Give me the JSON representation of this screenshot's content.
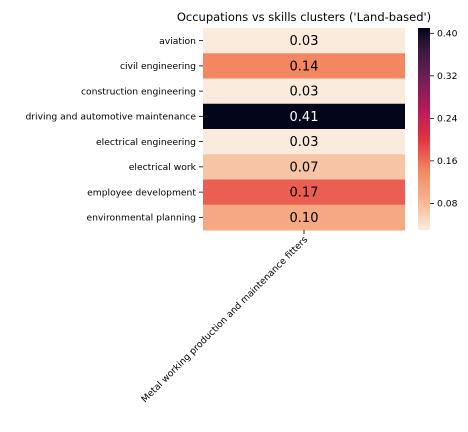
{
  "chart_data": {
    "type": "heatmap",
    "title": "Occupations vs skills clusters ('Land-based')",
    "columns": [
      "Metal working production and maintenance fitters"
    ],
    "rows": [
      "aviation",
      "civil engineering",
      "construction engineering",
      "driving and automotive maintenance",
      "electrical engineering",
      "electrical work",
      "employee development",
      "environmental planning"
    ],
    "values": [
      0.03,
      0.14,
      0.03,
      0.41,
      0.03,
      0.07,
      0.17,
      0.1
    ],
    "value_labels": [
      "0.03",
      "0.14",
      "0.03",
      "0.41",
      "0.03",
      "0.07",
      "0.17",
      "0.10"
    ],
    "colorbar": {
      "range": [
        0.03,
        0.41
      ],
      "ticks": [
        0.08,
        0.16,
        0.24,
        0.32,
        0.4
      ],
      "tick_labels": [
        "0.08",
        "0.16",
        "0.24",
        "0.32",
        "0.40"
      ],
      "colormap": "rocket"
    }
  }
}
